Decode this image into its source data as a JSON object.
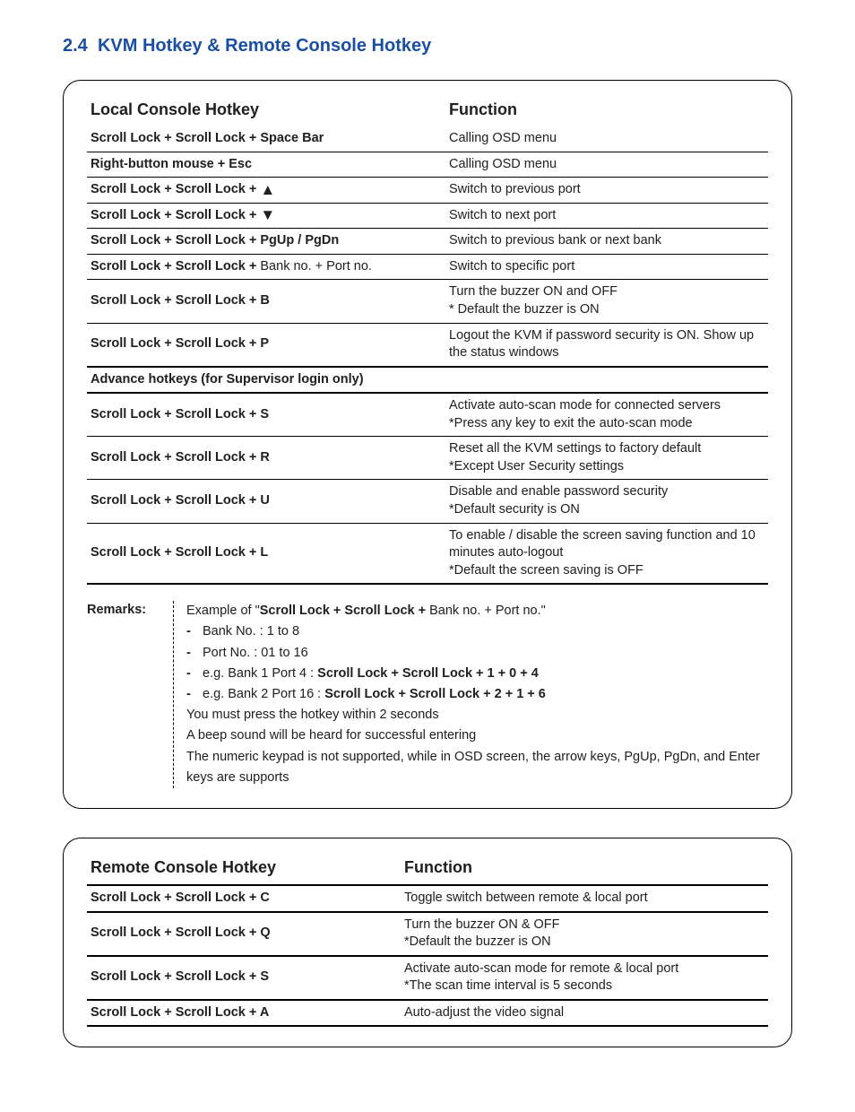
{
  "section": {
    "number": "2.4",
    "title": "KVM Hotkey & Remote Console Hotkey"
  },
  "local": {
    "heading_hotkey": "Local Console Hotkey",
    "heading_function": "Function",
    "rows": [
      {
        "hotkey_html": "<span class='bold'>Scroll Lock  +  Scroll Lock  +   Space Bar</span>",
        "func": "Calling OSD menu",
        "thick": false
      },
      {
        "hotkey_html": "<span class='bold'>Right-button mouse  +  Esc</span>",
        "func": "Calling OSD menu",
        "thick": false
      },
      {
        "hotkey_html": "<span class='bold'>Scroll Lock  +  Scroll Lock  +    </span><span class='arrow'>&#9650;</span>",
        "func": "Switch to previous port",
        "thick": false
      },
      {
        "hotkey_html": "<span class='bold'>Scroll Lock  +  Scroll Lock  +    </span><span class='arrow'>&#9660;</span>",
        "func": "Switch to next port",
        "thick": false
      },
      {
        "hotkey_html": "<span class='bold'>Scroll Lock  +  Scroll Lock  +    PgUp / PgDn</span>",
        "func": "Switch to previous bank or next bank",
        "thick": false
      },
      {
        "hotkey_html": "<span class='bold'>Scroll Lock  +  Scroll Lock  +   </span> Bank no.  +  Port no.",
        "func": "Switch to specific port",
        "thick": false
      },
      {
        "hotkey_html": "<span class='bold'>Scroll Lock  +  Scroll Lock  +    B</span>",
        "func": "Turn the buzzer ON and OFF<br>* Default the buzzer is ON",
        "thick": false
      },
      {
        "hotkey_html": "<span class='bold'>Scroll Lock  +  Scroll Lock  +   P</span>",
        "func": "Logout the KVM if password security is ON.  Show up the status windows",
        "thick": true
      }
    ],
    "advance_heading": "Advance hotkeys (for Supervisor login only)",
    "advance_rows": [
      {
        "hotkey_html": "<span class='bold'>Scroll Lock  +  Scroll Lock  +   S</span>",
        "func": "Activate auto-scan mode for connected servers<br>*Press any key to exit the auto-scan mode",
        "thick": false,
        "thick_top": true
      },
      {
        "hotkey_html": "<span class='bold'>Scroll Lock  +  Scroll Lock  +   R</span>",
        "func": "Reset all the KVM settings to factory default<br>*Except User Security settings",
        "thick": false
      },
      {
        "hotkey_html": "<span class='bold'>Scroll Lock  +  Scroll Lock  +   U</span>",
        "func": "Disable and enable password security<br>*Default security is ON",
        "thick": false
      },
      {
        "hotkey_html": "<span class='bold'>Scroll Lock  +  Scroll Lock  +   L</span>",
        "func": "To enable / disable the screen saving function and 10 minutes auto-logout<br>*Default the screen saving is OFF",
        "thick": true
      }
    ]
  },
  "remarks": {
    "label": "Remarks:",
    "intro": "Example of \"<span class='bold'>Scroll Lock  +  Scroll Lock  + </span> Bank no.  +  Port no.\"",
    "bullets": [
      "Bank No. :  1 to 8",
      "Port No.  :  01 to 16",
      "e.g. Bank 1 Port 4 :  <span class='bold'>Scroll Lock   +   Scroll Lock   +   1   +   0   +   4</span>",
      "e.g. Bank 2 Port 16 :  <span class='bold'>Scroll Lock   +   Scroll Lock   +   2   +   1   +   6</span>"
    ],
    "lines": [
      "You must press the hotkey within 2 seconds",
      "A beep sound will be heard for successful entering",
      "The numeric keypad is not supported, while in OSD screen, the arrow keys, PgUp, PgDn, and Enter keys are supports"
    ]
  },
  "remote": {
    "heading_hotkey": "Remote Console Hotkey",
    "heading_function": "Function",
    "rows": [
      {
        "hotkey_html": "<span class='bold'>Scroll Lock  +  Scroll Lock  +   C</span>",
        "func": "Toggle switch between remote & local port",
        "thick": true,
        "thick_top": true
      },
      {
        "hotkey_html": "<span class='bold'>Scroll Lock  +  Scroll Lock  +   Q</span>",
        "func": "Turn the buzzer ON & OFF<br>*Default the buzzer is ON",
        "thick": true
      },
      {
        "hotkey_html": "<span class='bold'>Scroll Lock  +  Scroll Lock  +   S</span>",
        "func": "Activate auto-scan mode for remote & local port<br>*The scan time interval is 5 seconds",
        "thick": true
      },
      {
        "hotkey_html": "<span class='bold'>Scroll Lock  +  Scroll Lock  +   A</span>",
        "func": "Auto-adjust the video signal",
        "thick": true
      }
    ]
  },
  "style": {
    "accent_color": "#1a4fa3",
    "text_color": "#202020",
    "border_color": "#000000",
    "title_fontsize_pt": 15,
    "heading_fontsize_pt": 14,
    "body_fontsize_pt": 11
  }
}
